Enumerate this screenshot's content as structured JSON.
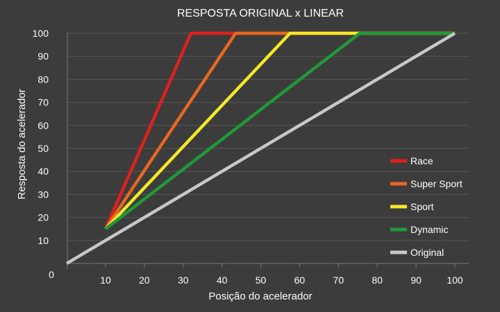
{
  "chart_data": {
    "type": "line",
    "title": "RESPOSTA ORIGINAL x LINEAR",
    "xlabel": "Posição do acelerador",
    "ylabel": "Resposta do acelerador",
    "xlim": [
      0,
      100
    ],
    "ylim": [
      0,
      100
    ],
    "x_ticks": [
      "0",
      "10",
      "20",
      "30",
      "40",
      "50",
      "60",
      "70",
      "80",
      "90",
      "100"
    ],
    "y_ticks": [
      "10",
      "20",
      "30",
      "40",
      "50",
      "60",
      "70",
      "80",
      "90",
      "100"
    ],
    "grid": true,
    "legend_position": "right",
    "background_color": "#3c3c3c",
    "series": [
      {
        "name": "Race",
        "color": "#e0201d",
        "points": [
          [
            10,
            15
          ],
          [
            32,
            100
          ],
          [
            100,
            100
          ]
        ]
      },
      {
        "name": "Super Sport",
        "color": "#e8681f",
        "points": [
          [
            10,
            15
          ],
          [
            43.5,
            100
          ],
          [
            100,
            100
          ]
        ]
      },
      {
        "name": "Sport",
        "color": "#f5e927",
        "points": [
          [
            10,
            15
          ],
          [
            57.5,
            100
          ],
          [
            100,
            100
          ]
        ]
      },
      {
        "name": "Dynamic",
        "color": "#1f9a36",
        "points": [
          [
            10,
            15
          ],
          [
            75.5,
            100
          ],
          [
            100,
            100
          ]
        ]
      },
      {
        "name": "Original",
        "color": "#c8c8c8",
        "points": [
          [
            0,
            0
          ],
          [
            100,
            100
          ]
        ]
      }
    ]
  }
}
